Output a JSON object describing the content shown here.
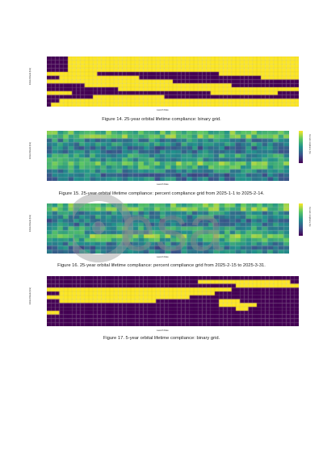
{
  "colors": {
    "dark": "#440154",
    "yellow": "#fde725",
    "viridis": [
      "#440154",
      "#3b528b",
      "#21918c",
      "#5ec962",
      "#fde725"
    ]
  },
  "figures": [
    {
      "id": "fig14",
      "caption": "Figure 14. 25-year orbital lifetime compliance: binary grid.",
      "xlabel": "Launch Date",
      "ylabel": "Initial Altitude (km)",
      "type": "binary",
      "rows": 13,
      "cols": 60,
      "row_labels": [
        "750 km alt",
        "700 km alt",
        "650 km alt",
        "600 km alt",
        "550 km alt",
        "500 km alt",
        "450 km alt",
        "400 km alt",
        "350 km alt",
        "300 km alt",
        "250 km alt",
        "200 km alt",
        "150 km alt"
      ]
    },
    {
      "id": "fig15",
      "caption": "Figure 15. 25-year orbital lifetime compliance: percent compliance grid from 2025-1-1 to 2025-2-14.",
      "xlabel": "Launch Date",
      "ylabel": "Initial Altitude (km)",
      "colorbar_label": "Percent compliance (%)",
      "colorbar_ticks": [
        "100",
        "80",
        "60",
        "40",
        "20",
        "0"
      ],
      "type": "percent",
      "rows": 13,
      "cols": 45
    },
    {
      "id": "fig16",
      "caption": "Figure 16. 25-year orbital lifetime compliance: percent compliance grid from 2025-2-15 to 2025-3-31.",
      "xlabel": "Launch Date",
      "ylabel": "Initial Altitude (km)",
      "colorbar_label": "Percent compliance (%)",
      "colorbar_ticks": [
        "100",
        "80",
        "60",
        "40",
        "20",
        "0"
      ],
      "type": "percent",
      "rows": 13,
      "cols": 45
    },
    {
      "id": "fig17",
      "caption": "Figure 17. 5-year orbital lifetime compliance: binary grid.",
      "xlabel": "Launch Date",
      "ylabel": "Initial Altitude (km)",
      "type": "binary",
      "rows": 13,
      "cols": 60
    }
  ],
  "watermark": {
    "text": "esa"
  }
}
